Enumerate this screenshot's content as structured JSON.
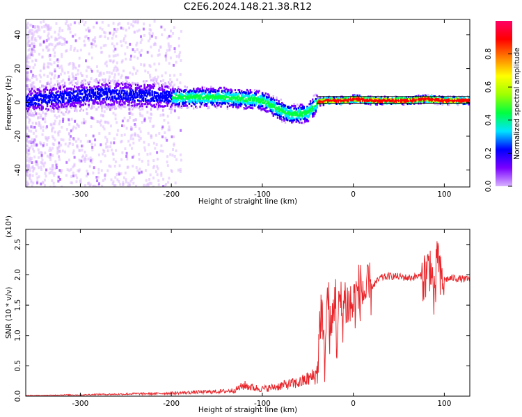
{
  "title": "C2E6.2024.148.21.38.R12",
  "chart_data": [
    {
      "type": "heatmap",
      "title": "C2E6.2024.148.21.38.R12",
      "xlabel": "Height of straight line (km)",
      "ylabel": "Frequency (Hz)",
      "xlim": [
        -360,
        128
      ],
      "ylim": [
        -50,
        49
      ],
      "xticks": [
        -300,
        -200,
        -100,
        0,
        100
      ],
      "yticks": [
        -40,
        -20,
        0,
        20,
        40
      ],
      "colorbar": {
        "label": "Normalized spectral amplitude",
        "ticks": [
          0.0,
          0.2,
          0.4,
          0.6,
          0.8
        ],
        "range": [
          0,
          1
        ],
        "colormap": [
          "#ffffff",
          "#d9b3ff",
          "#7a00ff",
          "#0000ff",
          "#00e5ff",
          "#00ff40",
          "#a0ff00",
          "#ffff00",
          "#ff8000",
          "#ff0000",
          "#ff0066"
        ]
      },
      "ridge": {
        "x": [
          -360,
          -340,
          -320,
          -300,
          -280,
          -260,
          -240,
          -220,
          -200,
          -180,
          -160,
          -140,
          -120,
          -100,
          -90,
          -80,
          -70,
          -60,
          -50,
          -40,
          -30,
          -20,
          -10,
          0,
          20,
          40,
          60,
          80,
          100,
          128
        ],
        "frequency": [
          1,
          2,
          3,
          4,
          5,
          5,
          4,
          4,
          3,
          3,
          3,
          3,
          2,
          1,
          -2,
          -5,
          -7,
          -7,
          -6,
          0,
          1,
          1,
          1,
          2,
          1,
          1,
          1,
          2,
          1,
          1
        ]
      }
    },
    {
      "type": "line",
      "xlabel": "Height of straight line (km)",
      "ylabel": "SNR (10 * v/v)",
      "y_multiplier": "(x10⁴)",
      "xlim": [
        -360,
        128
      ],
      "ylim": [
        0,
        2.75
      ],
      "xticks": [
        -300,
        -200,
        -100,
        0,
        100
      ],
      "yticks": [
        0.0,
        0.5,
        1.0,
        1.5,
        2.0,
        2.5
      ],
      "line_color": "#e8252a",
      "series": [
        {
          "x": [
            -360,
            -340,
            -320,
            -300,
            -280,
            -260,
            -240,
            -220,
            -200,
            -180,
            -160,
            -140,
            -130,
            -120,
            -110,
            -100,
            -90,
            -80,
            -70,
            -60,
            -50,
            -40,
            -38,
            -35,
            -32,
            -30,
            -28,
            -25,
            -22,
            -20,
            -18,
            -15,
            -12,
            -10,
            -5,
            0,
            5,
            10,
            15,
            20,
            30,
            40,
            50,
            60,
            70,
            80,
            85,
            90,
            92,
            95,
            100,
            110,
            120,
            128
          ],
          "values": [
            0.01,
            0.01,
            0.02,
            0.02,
            0.03,
            0.03,
            0.04,
            0.04,
            0.05,
            0.06,
            0.07,
            0.08,
            0.1,
            0.18,
            0.14,
            0.12,
            0.14,
            0.17,
            0.2,
            0.22,
            0.28,
            0.35,
            0.9,
            1.5,
            0.5,
            1.2,
            1.7,
            0.9,
            1.4,
            1.8,
            0.8,
            1.6,
            1.3,
            1.6,
            1.5,
            1.5,
            1.7,
            1.75,
            1.65,
            1.8,
            1.95,
            1.98,
            1.97,
            1.95,
            1.97,
            2.0,
            2.2,
            1.4,
            2.6,
            1.9,
            1.92,
            1.95,
            1.93,
            1.92
          ]
        }
      ]
    }
  ]
}
